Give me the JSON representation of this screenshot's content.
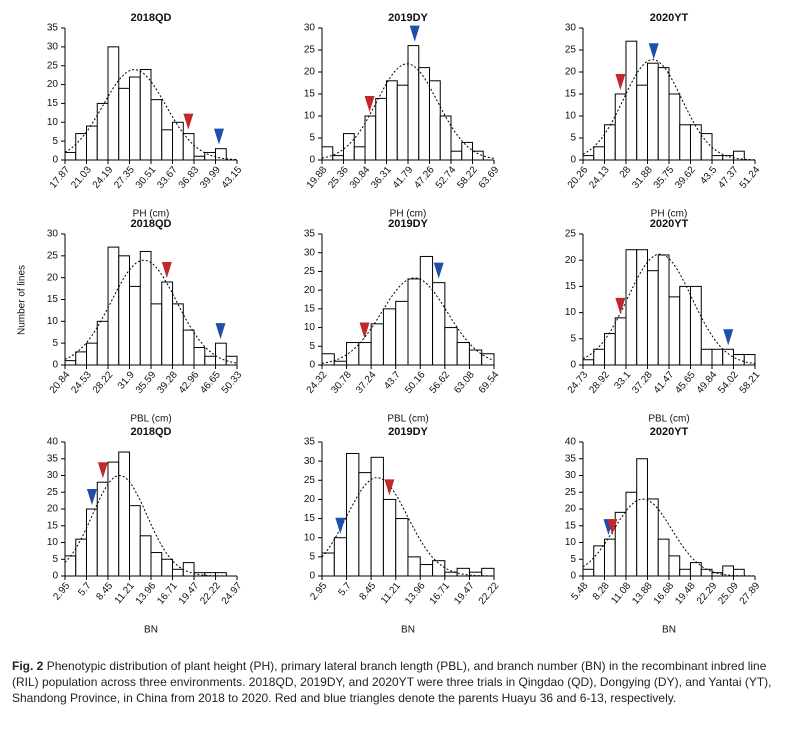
{
  "chart_data": [
    {
      "type": "histogram",
      "title": "2018QD",
      "xlabel": "PH (cm)",
      "bins": [
        17.87,
        19.45,
        21.03,
        22.61,
        24.19,
        25.77,
        27.35,
        28.93,
        30.51,
        32.09,
        33.67,
        35.25,
        36.83,
        38.41,
        39.99,
        41.57
      ],
      "values": [
        2,
        7,
        9,
        15,
        30,
        19,
        22,
        24,
        16,
        8,
        10,
        7,
        1,
        2,
        3
      ],
      "xlim": [
        17.87,
        43.15
      ],
      "xticks": [
        17.87,
        21.03,
        24.19,
        27.35,
        30.51,
        33.67,
        36.83,
        39.99,
        43.15
      ],
      "ylim": [
        0,
        35
      ],
      "yticks": [
        0,
        5,
        10,
        15,
        20,
        25,
        30,
        35
      ],
      "parents": [
        {
          "x": 36.0,
          "color": "#c0282d"
        },
        {
          "x": 40.5,
          "color": "#1f4fa8"
        }
      ]
    },
    {
      "type": "histogram",
      "title": "2019DY",
      "xlabel": "PH (cm)",
      "bins": [
        19.88,
        22.62,
        25.36,
        28.1,
        30.84,
        33.57,
        36.31,
        39.05,
        41.79,
        44.53,
        47.26,
        50.0,
        52.74,
        55.48,
        58.22,
        60.95,
        63.69
      ],
      "values": [
        3,
        1,
        6,
        3,
        10,
        14,
        18,
        17,
        26,
        21,
        18,
        10,
        2,
        4,
        2,
        0
      ],
      "xlim": [
        19.88,
        63.69
      ],
      "xticks": [
        19.88,
        25.36,
        30.84,
        36.31,
        41.79,
        47.26,
        52.74,
        58.22,
        63.69
      ],
      "ylim": [
        0,
        30
      ],
      "yticks": [
        0,
        5,
        10,
        15,
        20,
        25,
        30
      ],
      "parents": [
        {
          "x": 32.0,
          "color": "#c0282d"
        },
        {
          "x": 43.5,
          "color": "#1f4fa8"
        }
      ]
    },
    {
      "type": "histogram",
      "title": "2020YT",
      "xlabel": "PH (cm)",
      "bins": [
        20.26,
        22.2,
        24.13,
        26.07,
        28.0,
        29.94,
        31.88,
        33.81,
        35.75,
        37.69,
        39.62,
        41.56,
        43.5,
        45.43,
        47.37,
        49.31,
        51.24
      ],
      "values": [
        1,
        3,
        8,
        15,
        27,
        17,
        22,
        21,
        15,
        8,
        8,
        6,
        1,
        1,
        2,
        0
      ],
      "xlim": [
        20.26,
        51.24
      ],
      "xticks": [
        20.26,
        24.13,
        28.0,
        31.88,
        35.75,
        39.62,
        43.5,
        47.37,
        51.24
      ],
      "ylim": [
        0,
        30
      ],
      "yticks": [
        0,
        5,
        10,
        15,
        20,
        25,
        30
      ],
      "parents": [
        {
          "x": 27.0,
          "color": "#c0282d"
        },
        {
          "x": 33.0,
          "color": "#1f4fa8"
        }
      ]
    },
    {
      "type": "histogram",
      "title": "2018QD",
      "xlabel": "PBL (cm)",
      "bins": [
        20.84,
        22.68,
        24.53,
        26.37,
        28.22,
        30.06,
        31.9,
        33.75,
        35.59,
        37.43,
        39.28,
        41.12,
        42.96,
        44.81,
        46.65,
        48.49,
        50.33
      ],
      "values": [
        1,
        3,
        5,
        10,
        27,
        25,
        18,
        26,
        14,
        19,
        14,
        8,
        4,
        2,
        5,
        2
      ],
      "xlim": [
        20.84,
        50.33
      ],
      "xticks": [
        20.84,
        24.53,
        28.22,
        31.9,
        35.59,
        39.28,
        42.96,
        46.65,
        50.33
      ],
      "ylim": [
        0,
        30
      ],
      "yticks": [
        0,
        5,
        10,
        15,
        20,
        25,
        30
      ],
      "parents": [
        {
          "x": 38.3,
          "color": "#c0282d"
        },
        {
          "x": 47.5,
          "color": "#1f4fa8"
        }
      ]
    },
    {
      "type": "histogram",
      "title": "2019DY",
      "xlabel": "PBL (cm)",
      "bins": [
        24.32,
        27.55,
        30.78,
        34.01,
        37.24,
        40.47,
        43.7,
        46.93,
        50.16,
        53.39,
        56.62,
        59.85,
        63.08,
        66.31,
        69.54
      ],
      "values": [
        3,
        1,
        6,
        6,
        11,
        15,
        17,
        23,
        29,
        22,
        10,
        6,
        4,
        3
      ],
      "xlim": [
        24.32,
        69.54
      ],
      "xticks": [
        24.32,
        30.78,
        37.24,
        43.7,
        50.16,
        56.62,
        63.08,
        69.54
      ],
      "ylim": [
        0,
        35
      ],
      "yticks": [
        0,
        5,
        10,
        15,
        20,
        25,
        30,
        35
      ],
      "parents": [
        {
          "x": 35.5,
          "color": "#c0282d"
        },
        {
          "x": 55.0,
          "color": "#1f4fa8"
        }
      ]
    },
    {
      "type": "histogram",
      "title": "2020YT",
      "xlabel": "PBL (cm)",
      "bins": [
        24.73,
        26.82,
        28.92,
        31.01,
        33.1,
        35.19,
        37.28,
        39.38,
        41.47,
        43.56,
        45.65,
        47.75,
        49.84,
        51.93,
        54.02,
        56.12,
        58.21
      ],
      "values": [
        1,
        3,
        6,
        9,
        22,
        22,
        18,
        21,
        13,
        15,
        15,
        3,
        3,
        3,
        2,
        2
      ],
      "xlim": [
        24.73,
        58.21
      ],
      "xticks": [
        24.73,
        28.92,
        33.1,
        37.28,
        41.47,
        45.65,
        49.84,
        54.02,
        58.21
      ],
      "ylim": [
        0,
        25
      ],
      "yticks": [
        0,
        5,
        10,
        15,
        20,
        25
      ],
      "parents": [
        {
          "x": 32.0,
          "color": "#c0282d"
        },
        {
          "x": 53.0,
          "color": "#1f4fa8"
        }
      ]
    },
    {
      "type": "histogram",
      "title": "2018QD",
      "xlabel": "BN",
      "bins": [
        2.95,
        4.33,
        5.7,
        7.08,
        8.45,
        9.83,
        11.21,
        12.58,
        13.96,
        15.34,
        16.71,
        18.09,
        19.47,
        20.84,
        22.22,
        23.6,
        24.97
      ],
      "values": [
        6,
        11,
        20,
        28,
        34,
        37,
        21,
        12,
        7,
        5,
        2,
        4,
        1,
        1,
        1,
        0
      ],
      "xlim": [
        2.95,
        24.97
      ],
      "xticks": [
        2.95,
        5.7,
        8.45,
        11.21,
        13.96,
        16.71,
        19.47,
        22.22,
        24.97
      ],
      "ylim": [
        0,
        40
      ],
      "yticks": [
        0,
        5,
        10,
        15,
        20,
        25,
        30,
        35,
        40
      ],
      "parents": [
        {
          "x": 6.4,
          "color": "#1f4fa8"
        },
        {
          "x": 7.8,
          "color": "#c0282d"
        }
      ]
    },
    {
      "type": "histogram",
      "title": "2019DY",
      "xlabel": "BN",
      "bins": [
        2.95,
        4.33,
        5.7,
        7.08,
        8.45,
        9.83,
        11.21,
        12.58,
        13.96,
        15.34,
        16.71,
        18.09,
        19.47,
        20.84,
        22.22
      ],
      "values": [
        6,
        10,
        32,
        27,
        31,
        20,
        15,
        5,
        3,
        4,
        1,
        2,
        1,
        2
      ],
      "xlim": [
        2.95,
        22.22
      ],
      "xticks": [
        2.95,
        5.7,
        8.45,
        11.21,
        13.96,
        16.71,
        19.47,
        22.22
      ],
      "ylim": [
        0,
        35
      ],
      "yticks": [
        0,
        5,
        10,
        15,
        20,
        25,
        30,
        35
      ],
      "parents": [
        {
          "x": 5.0,
          "color": "#1f4fa8"
        },
        {
          "x": 10.5,
          "color": "#c0282d"
        }
      ]
    },
    {
      "type": "histogram",
      "title": "2020YT",
      "xlabel": "BN",
      "bins": [
        5.48,
        6.88,
        8.28,
        9.68,
        11.08,
        12.48,
        13.88,
        15.28,
        16.68,
        18.08,
        19.48,
        20.89,
        22.29,
        23.69,
        25.09,
        26.49,
        27.89
      ],
      "values": [
        2,
        9,
        11,
        19,
        25,
        35,
        23,
        11,
        6,
        2,
        4,
        2,
        1,
        3,
        2,
        0
      ],
      "xlim": [
        5.48,
        27.89
      ],
      "xticks": [
        5.48,
        8.28,
        11.08,
        13.88,
        16.68,
        19.48,
        22.29,
        25.09,
        27.89
      ],
      "ylim": [
        0,
        40
      ],
      "yticks": [
        0,
        5,
        10,
        15,
        20,
        25,
        30,
        35,
        40
      ],
      "parents": [
        {
          "x": 8.8,
          "color": "#1f4fa8"
        },
        {
          "x": 9.3,
          "color": "#c0282d"
        }
      ]
    }
  ],
  "shared_ylabel": "Number of lines",
  "caption": {
    "label": "Fig. 2",
    "text": "Phenotypic distribution of plant height (PH), primary lateral branch length (PBL), and branch number (BN) in the recombinant inbred line (RIL) population across three environments.  2018QD, 2019DY, and 2020YT were three trials in Qingdao (QD), Dongying (DY), and Yantai (YT), Shandong Province, in China from 2018 to 2020.  Red and blue triangles denote the parents Huayu 36 and 6-13, respectively."
  }
}
